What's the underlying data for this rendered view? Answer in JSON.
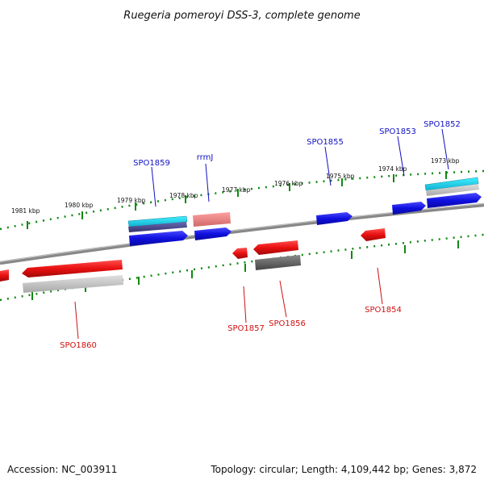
{
  "title": "Ruegeria pomeroyi DSS-3, complete genome",
  "footer": {
    "accession": "Accession: NC_003911",
    "summary": "Topology: circular; Length: 4,109,442 bp; Genes: 3,872"
  },
  "scale_labels": [
    "1981 kbp",
    "1980 kbp",
    "1979 kbp",
    "1978 kbp",
    "1977 kbp",
    "1976 kbp",
    "1975 kbp",
    "1974 kbp",
    "1973 kbp"
  ],
  "forward_genes": [
    "SPO1859",
    "rrmJ",
    "SPO1855",
    "SPO1853",
    "SPO1852"
  ],
  "reverse_genes": [
    "SPO1860",
    "SPO1857",
    "SPO1856",
    "SPO1854"
  ],
  "colors": {
    "forward_cds": "#1010e0",
    "reverse_cds": "#e01010",
    "forward_label": "#1010c0",
    "reverse_label": "#d01010",
    "tick": "#118811",
    "backbone": "#888888"
  }
}
